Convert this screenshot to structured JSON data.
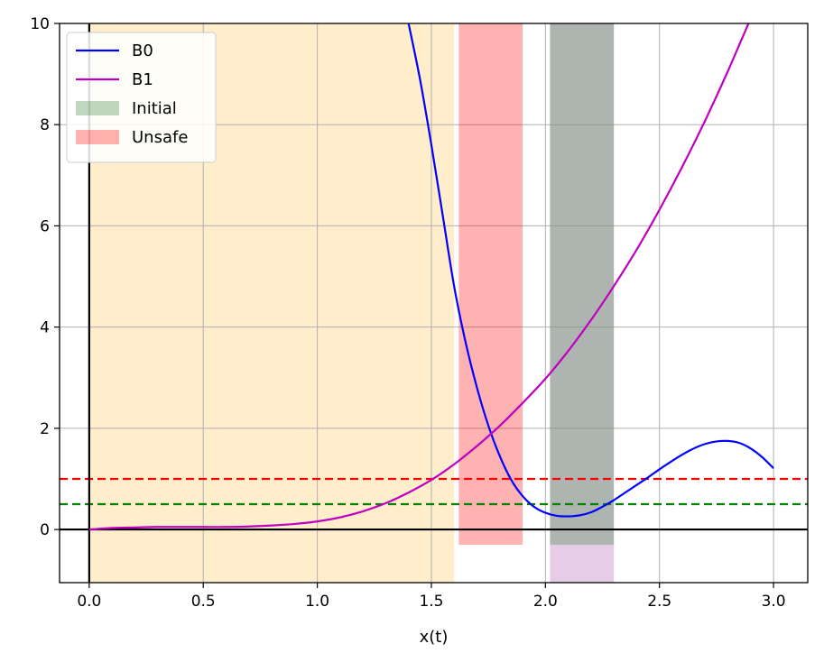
{
  "chart_data": {
    "type": "line",
    "title": "",
    "xlabel": "x(t)",
    "ylabel": "",
    "xlim": [
      -0.13,
      3.15
    ],
    "ylim": [
      -1.05,
      10
    ],
    "xticks": [
      0.0,
      0.5,
      1.0,
      1.5,
      2.0,
      2.5,
      3.0
    ],
    "xtick_labels": [
      "0.0",
      "0.5",
      "1.0",
      "1.5",
      "2.0",
      "2.5",
      "3.0"
    ],
    "yticks": [
      0,
      2,
      4,
      6,
      8,
      10
    ],
    "ytick_labels": [
      "0",
      "2",
      "4",
      "6",
      "8",
      "10"
    ],
    "grid": true,
    "legend_position": "top-left",
    "series": [
      {
        "name": "B0",
        "color": "#0000ff",
        "x": [
          1.4,
          1.45,
          1.5,
          1.55,
          1.6,
          1.65,
          1.7,
          1.75,
          1.8,
          1.85,
          1.9,
          1.95,
          2.0,
          2.05,
          2.1,
          2.15,
          2.2,
          2.25,
          2.3,
          2.35,
          2.4,
          2.45,
          2.5,
          2.55,
          2.6,
          2.65,
          2.7,
          2.75,
          2.8,
          2.85,
          2.9,
          2.95,
          3.0
        ],
        "y": [
          10.0,
          8.9,
          7.6,
          6.2,
          4.8,
          3.7,
          2.8,
          2.05,
          1.45,
          0.98,
          0.66,
          0.45,
          0.33,
          0.27,
          0.26,
          0.28,
          0.34,
          0.45,
          0.58,
          0.73,
          0.88,
          1.03,
          1.19,
          1.34,
          1.48,
          1.6,
          1.69,
          1.74,
          1.75,
          1.71,
          1.6,
          1.43,
          1.21
        ]
      },
      {
        "name": "B1",
        "color": "#bf00bf",
        "x": [
          0.0,
          0.1,
          0.2,
          0.3,
          0.4,
          0.5,
          0.6,
          0.7,
          0.8,
          0.9,
          1.0,
          1.1,
          1.2,
          1.3,
          1.4,
          1.5,
          1.6,
          1.7,
          1.8,
          1.9,
          2.0,
          2.1,
          2.2,
          2.3,
          2.4,
          2.5,
          2.6,
          2.7,
          2.8,
          2.9,
          2.95
        ],
        "y": [
          0.0,
          0.03,
          0.04,
          0.05,
          0.05,
          0.05,
          0.05,
          0.06,
          0.08,
          0.11,
          0.16,
          0.24,
          0.36,
          0.52,
          0.73,
          0.98,
          1.29,
          1.65,
          2.05,
          2.5,
          2.98,
          3.53,
          4.14,
          4.81,
          5.53,
          6.32,
          7.17,
          8.08,
          9.06,
          10.1,
          10.6
        ]
      }
    ],
    "regions": [
      {
        "name": "Initial",
        "x": [
          2.02,
          2.3
        ],
        "y": [
          -0.3,
          10
        ],
        "color": "#2e7d32",
        "opacity": 0.3
      },
      {
        "name": "Unsafe",
        "x": [
          1.62,
          1.9
        ],
        "y": [
          -0.3,
          10
        ],
        "color": "#ff0000",
        "opacity": 0.3
      }
    ],
    "background_regions": [
      {
        "x": [
          0.0,
          1.6
        ],
        "y": [
          -1.05,
          10
        ],
        "color": "#ffa500",
        "opacity": 0.2
      },
      {
        "x": [
          2.02,
          2.3
        ],
        "y": [
          -1.05,
          10
        ],
        "color": "#800080",
        "opacity": 0.2
      }
    ],
    "hlines": [
      {
        "y": 1.0,
        "color": "#ff0000",
        "style": "dashed"
      },
      {
        "y": 0.5,
        "color": "#008000",
        "style": "dashed"
      },
      {
        "y": 0.0,
        "color": "#000000",
        "style": "solid"
      }
    ],
    "vlines": [
      {
        "x": 0.0,
        "color": "#000000",
        "style": "solid"
      }
    ],
    "legend": [
      {
        "label": "B0",
        "kind": "line",
        "color": "#0000ff"
      },
      {
        "label": "B1",
        "kind": "line",
        "color": "#bf00bf"
      },
      {
        "label": "Initial",
        "kind": "patch",
        "color": "#2e7d32",
        "opacity": 0.3
      },
      {
        "label": "Unsafe",
        "kind": "patch",
        "color": "#ff0000",
        "opacity": 0.3
      }
    ]
  }
}
